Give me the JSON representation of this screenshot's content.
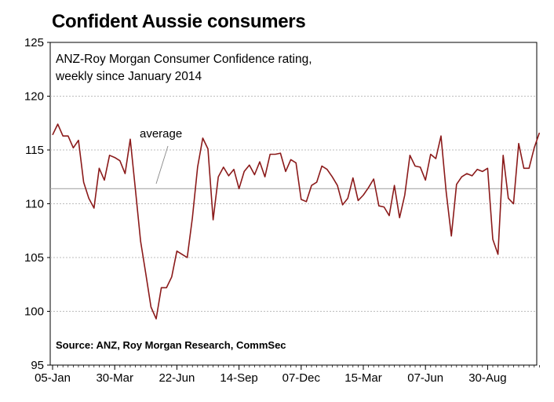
{
  "title": "Confident Aussie consumers",
  "chart_data": {
    "type": "line",
    "subtitle_lines": [
      "ANZ-Roy Morgan Consumer Confidence rating,",
      "weekly since January 2014"
    ],
    "source": "Source: ANZ, Roy Morgan Research, CommSec",
    "annotation": "average",
    "average": 111.4,
    "ylim": [
      95,
      125
    ],
    "yticks": [
      95,
      100,
      105,
      110,
      115,
      120,
      125
    ],
    "xtick_labels": [
      "05-Jan",
      "30-Mar",
      "22-Jun",
      "14-Sep",
      "07-Dec",
      "15-Mar",
      "07-Jun",
      "30-Aug"
    ],
    "grid": true,
    "series": [
      {
        "color": "#8b1a1a",
        "values": [
          116.4,
          117.4,
          116.3,
          116.3,
          115.2,
          115.9,
          112.0,
          110.5,
          109.6,
          113.3,
          112.2,
          114.5,
          114.3,
          114.0,
          112.8,
          116.0,
          111.3,
          106.5,
          103.5,
          100.4,
          99.3,
          102.2,
          102.2,
          103.2,
          105.6,
          105.3,
          105.0,
          108.7,
          113.4,
          116.1,
          115.1,
          108.5,
          112.5,
          113.4,
          112.6,
          113.2,
          111.4,
          113.0,
          113.6,
          112.7,
          113.9,
          112.5,
          114.6,
          114.6,
          114.7,
          113.0,
          114.1,
          113.8,
          110.4,
          110.2,
          111.7,
          112.0,
          113.5,
          113.2,
          112.5,
          111.7,
          109.9,
          110.5,
          112.4,
          110.3,
          110.8,
          111.5,
          112.3,
          109.8,
          109.7,
          108.9,
          111.7,
          108.7,
          110.8,
          114.5,
          113.5,
          113.4,
          112.2,
          114.6,
          114.2,
          116.3,
          111.1,
          107.0,
          111.8,
          112.5,
          112.8,
          112.6,
          113.2,
          113.0,
          113.3,
          106.7,
          105.3,
          114.5,
          110.5,
          110.0,
          115.6,
          113.3,
          113.3,
          115.2,
          116.6
        ]
      }
    ]
  }
}
